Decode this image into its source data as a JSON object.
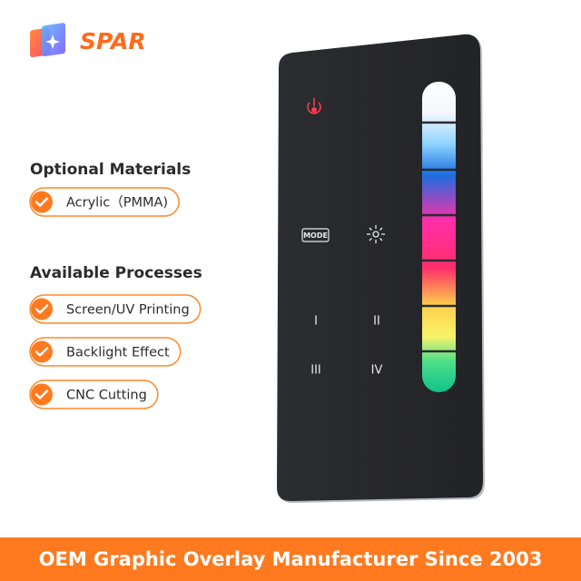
{
  "brand": "SPAR",
  "sections": [
    {
      "title": "Optional Materials",
      "items": [
        "Acrylic（PMMA)"
      ]
    },
    {
      "title": "Available Processes",
      "items": [
        "Screen/UV Printing",
        "Backlight Effect",
        "CNC Cutting"
      ]
    }
  ],
  "remote": {
    "mode_label": "MODE",
    "buttons": [
      "I",
      "II",
      "III",
      "IV"
    ]
  },
  "footer": "OEM Graphic Overlay Manufacturer Since 2003"
}
